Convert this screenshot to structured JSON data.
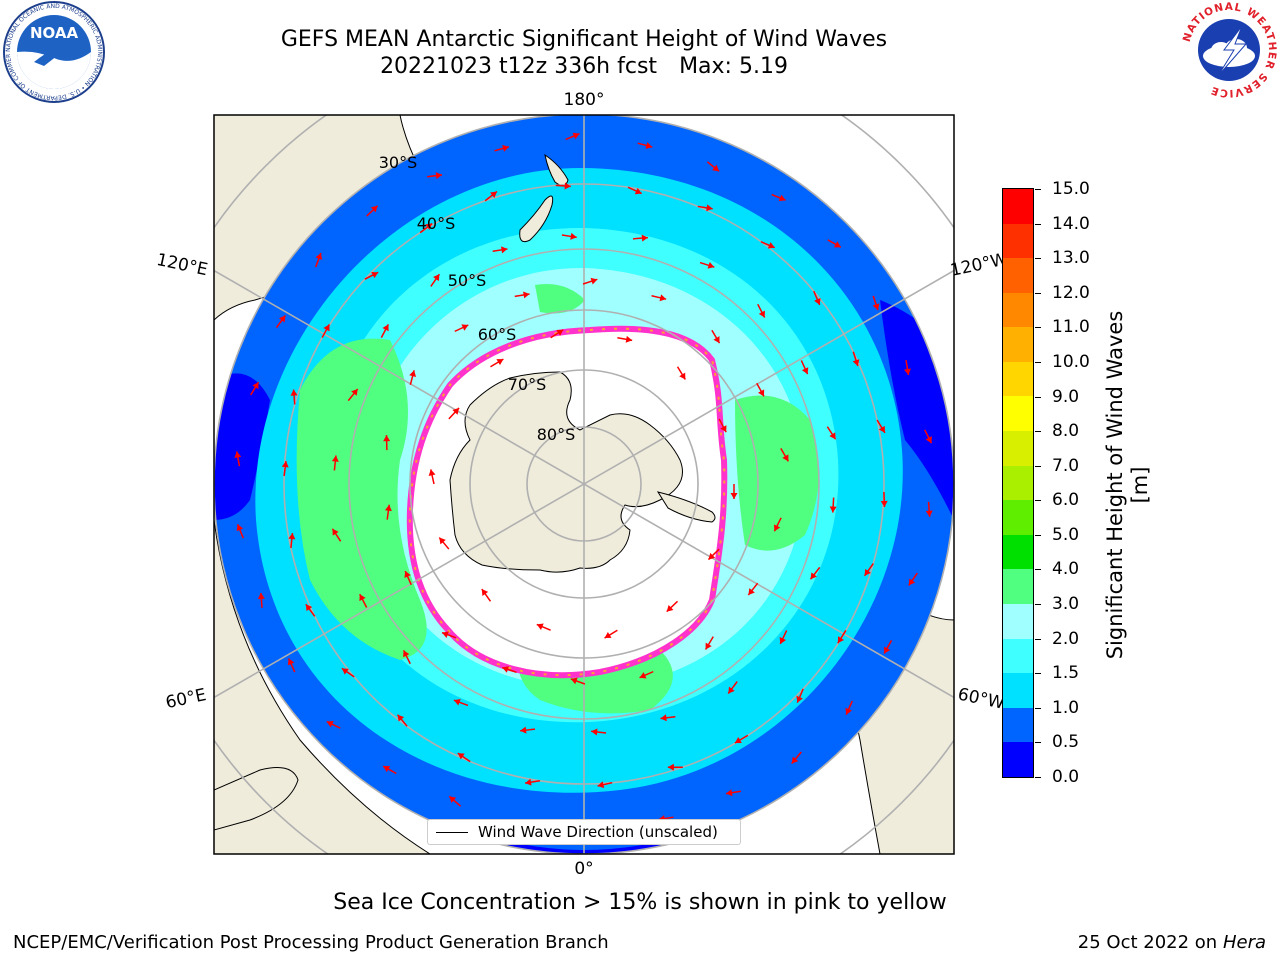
{
  "title": {
    "line1": "GEFS MEAN Antarctic Significant Height of Wind Waves",
    "line2_main": "20221023 t12z 336h fcst",
    "line2_max": "Max: 5.19"
  },
  "map": {
    "projection": "South polar stereographic",
    "meridian_labels": [
      "180°",
      "120°E",
      "120°W",
      "60°E",
      "60°W",
      "0°"
    ],
    "parallel_labels": [
      "30°S",
      "40°S",
      "50°S",
      "60°S",
      "70°S",
      "80°S"
    ],
    "colors": {
      "land": "#efecdc",
      "sea_ice_edge": "#ff33cc",
      "sea_ice_fringe": "#ffa033",
      "direction_arrows": "#ff0000",
      "grid": "#b0b0b0"
    }
  },
  "colorbar": {
    "title": "Significant Height of Wind Waves [m]",
    "ticks": [
      "0.0",
      "0.5",
      "1.0",
      "1.5",
      "2.0",
      "3.0",
      "4.0",
      "5.0",
      "6.0",
      "7.0",
      "8.0",
      "9.0",
      "10.0",
      "11.0",
      "12.0",
      "13.0",
      "14.0",
      "15.0"
    ],
    "colors": [
      "#0000ff",
      "#0064ff",
      "#00e0ff",
      "#40ffff",
      "#a0ffff",
      "#50ff80",
      "#00e000",
      "#60ee00",
      "#aaee00",
      "#d8f000",
      "#ffff00",
      "#ffd600",
      "#ffb000",
      "#ff8800",
      "#ff6000",
      "#ff3000",
      "#ff0000"
    ]
  },
  "legend": {
    "label": "Wind Wave Direction (unscaled)"
  },
  "footnote": "Sea Ice Concentration > 15% is shown in pink to yellow",
  "credit": "NCEP/EMC/Verification Post Processing Product Generation Branch",
  "date": {
    "text": "25 Oct 2022 on",
    "machine": "Hera"
  },
  "logos": {
    "noaa": "NOAA",
    "noaa_ring": "NATIONAL OCEANIC AND ATMOSPHERIC ADMINISTRATION • U.S. DEPARTMENT OF COMMERCE",
    "nws_ring": "NATIONAL WEATHER SERVICE"
  }
}
